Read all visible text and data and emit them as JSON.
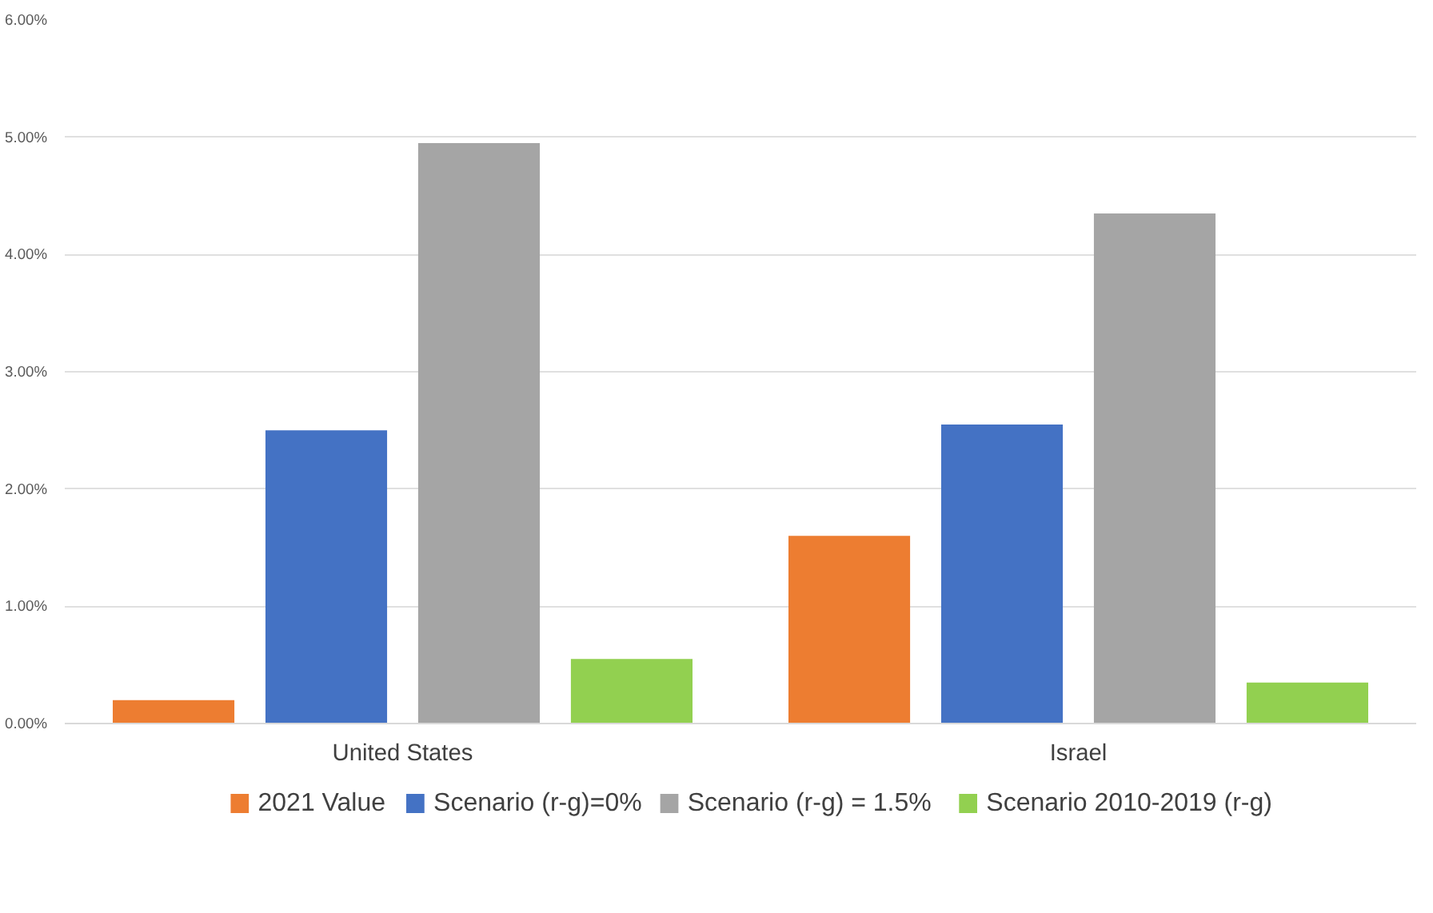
{
  "chart_data": {
    "type": "bar",
    "categories": [
      "United States",
      "Israel"
    ],
    "series": [
      {
        "name": "2021 Value",
        "color": "#ed7d31",
        "values": [
          0.2,
          1.6
        ]
      },
      {
        "name": "Scenario (r-g)=0%",
        "color": "#4472c4",
        "values": [
          2.5,
          2.55
        ]
      },
      {
        "name": "Scenario (r-g) = 1.5%",
        "color": "#a5a5a5",
        "values": [
          4.95,
          4.35
        ]
      },
      {
        "name": "Scenario 2010-2019 (r-g)",
        "color": "#92d050",
        "values": [
          0.55,
          0.35
        ]
      }
    ],
    "ylim": [
      0,
      6
    ],
    "yticks": [
      {
        "value": 0,
        "label": "0.00%"
      },
      {
        "value": 1,
        "label": "1.00%"
      },
      {
        "value": 2,
        "label": "2.00%"
      },
      {
        "value": 3,
        "label": "3.00%"
      },
      {
        "value": 4,
        "label": "4.00%"
      },
      {
        "value": 5,
        "label": "5.00%"
      },
      {
        "value": 6,
        "label": "6.00%"
      }
    ],
    "grid": "y",
    "legend": "bottom"
  }
}
